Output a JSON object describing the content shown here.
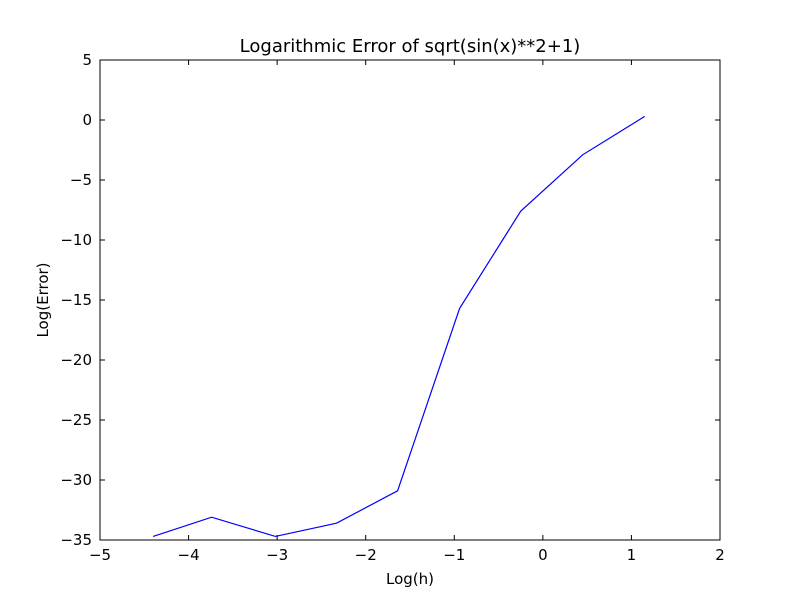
{
  "chart_data": {
    "type": "line",
    "title": "Logarithmic Error of sqrt(sin(x)**2+1)",
    "xlabel": "Log(h)",
    "ylabel": "Log(Error)",
    "xlim": [
      -5,
      2
    ],
    "ylim": [
      -35,
      5
    ],
    "xticks": [
      -5,
      -4,
      -3,
      -2,
      -1,
      0,
      1,
      2
    ],
    "yticks": [
      5,
      0,
      -5,
      -10,
      -15,
      -20,
      -25,
      -30,
      -35
    ],
    "grid": false,
    "series_color": "#0000ff",
    "series": [
      {
        "x": [
          -4.4,
          -3.74,
          -3.02,
          -2.33,
          -1.64,
          -0.94,
          -0.25,
          0.45,
          1.15
        ],
        "y": [
          -34.7,
          -33.1,
          -34.7,
          -33.6,
          -30.9,
          -15.7,
          -7.6,
          -2.9,
          0.3
        ]
      }
    ]
  }
}
